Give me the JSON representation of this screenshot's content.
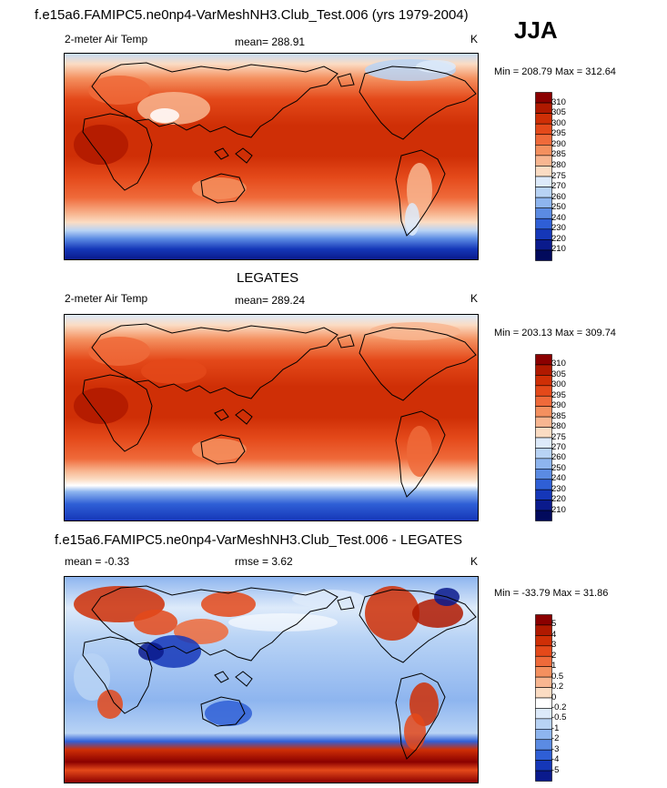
{
  "season": "JJA",
  "panels": [
    {
      "title": "f.e15a6.FAMIPC5.ne0np4-VarMeshNH3.Club_Test.006 (yrs 1979-2004)",
      "left_label": "2-meter Air Temp",
      "center_label": "mean= 288.91",
      "units": "K",
      "minmax": "Min = 208.79 Max = 312.64",
      "levels": [
        "310",
        "305",
        "300",
        "295",
        "290",
        "285",
        "280",
        "275",
        "270",
        "260",
        "250",
        "240",
        "230",
        "220",
        "210"
      ],
      "colors": [
        "#8b0000",
        "#b01900",
        "#cf2f06",
        "#e4491a",
        "#ef6a3a",
        "#f4905f",
        "#f8b691",
        "#fbdcc3",
        "#ddeafa",
        "#b8d3f5",
        "#8eb5ef",
        "#5b8be3",
        "#2f5fd6",
        "#1537b8",
        "#0a1a8c",
        "#020a5c"
      ]
    },
    {
      "title": "LEGATES",
      "left_label": "2-meter Air Temp",
      "center_label": "mean= 289.24",
      "units": "K",
      "minmax": "Min = 203.13 Max = 309.74",
      "levels": [
        "310",
        "305",
        "300",
        "295",
        "290",
        "285",
        "280",
        "275",
        "270",
        "260",
        "250",
        "240",
        "230",
        "220",
        "210"
      ],
      "colors": [
        "#8b0000",
        "#b01900",
        "#cf2f06",
        "#e4491a",
        "#ef6a3a",
        "#f4905f",
        "#f8b691",
        "#fbdcc3",
        "#ddeafa",
        "#b8d3f5",
        "#8eb5ef",
        "#5b8be3",
        "#2f5fd6",
        "#1537b8",
        "#0a1a8c",
        "#020a5c"
      ]
    },
    {
      "title": "f.e15a6.FAMIPC5.ne0np4-VarMeshNH3.Club_Test.006 - LEGATES",
      "left_label": "mean =  -0.33",
      "center_label": "rmse =   3.62",
      "units": "K",
      "minmax": "Min = -33.79 Max =  31.86",
      "levels": [
        "5",
        "4",
        "3",
        "2",
        "1",
        "0.5",
        "0.2",
        "0",
        "-0.2",
        "-0.5",
        "-1",
        "-2",
        "-3",
        "-4",
        "-5"
      ],
      "colors": [
        "#8b0000",
        "#b01900",
        "#cf2f06",
        "#e4491a",
        "#ef6a3a",
        "#f4905f",
        "#f8b691",
        "#fbdcc3",
        "#ffffff",
        "#ddeafa",
        "#b8d3f5",
        "#8eb5ef",
        "#5b8be3",
        "#2f5fd6",
        "#1537b8",
        "#0a1a8c"
      ]
    }
  ]
}
